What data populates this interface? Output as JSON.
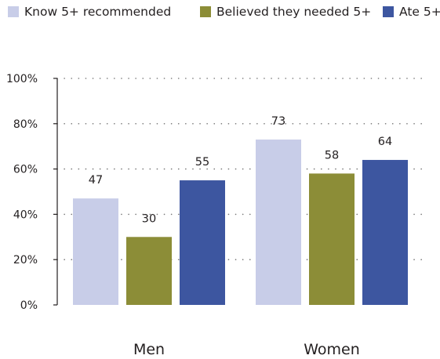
{
  "chart_data": {
    "type": "bar",
    "categories": [
      "Men",
      "Women"
    ],
    "series": [
      {
        "name": "Know 5+ recommended",
        "color": "#c8cde8",
        "values": [
          47,
          73
        ]
      },
      {
        "name": "Believed they needed 5+",
        "color": "#8c8d37",
        "values": [
          30,
          58
        ]
      },
      {
        "name": "Ate 5+",
        "color": "#3d56a0",
        "values": [
          55,
          64
        ]
      }
    ],
    "ylim": [
      0,
      100
    ],
    "yticks": [
      0,
      20,
      40,
      60,
      80,
      100
    ],
    "ytick_labels": [
      "0%",
      "20%",
      "40%",
      "60%",
      "80%",
      "100%"
    ],
    "data_labels": [
      [
        "47",
        "73"
      ],
      [
        "30",
        "58"
      ],
      [
        "55",
        "64"
      ]
    ],
    "grid": "dotted horizontal",
    "legend_position": "top"
  }
}
